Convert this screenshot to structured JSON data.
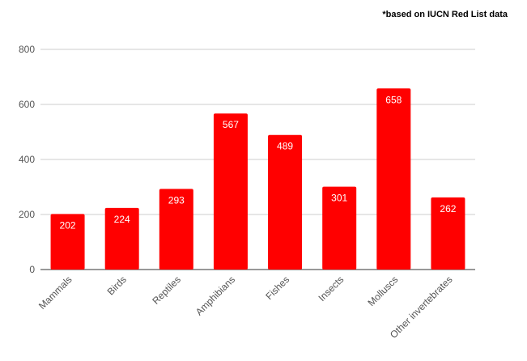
{
  "note": "*based on IUCN Red List data",
  "chart_data": {
    "type": "bar",
    "title": "",
    "xlabel": "",
    "ylabel": "",
    "categories": [
      "Mammals",
      "Birds",
      "Reptiles",
      "Amphibians",
      "Fishes",
      "Insects",
      "Molluscs",
      "Other invertebrates"
    ],
    "values": [
      202,
      224,
      293,
      567,
      489,
      301,
      658,
      262
    ],
    "ylim": [
      0,
      800
    ],
    "yticks": [
      0,
      200,
      400,
      600,
      800
    ],
    "grid": true,
    "legend": "none",
    "data_labels": "inside-top",
    "bar_color": "#ff0000",
    "label_color": "#ffffff"
  }
}
